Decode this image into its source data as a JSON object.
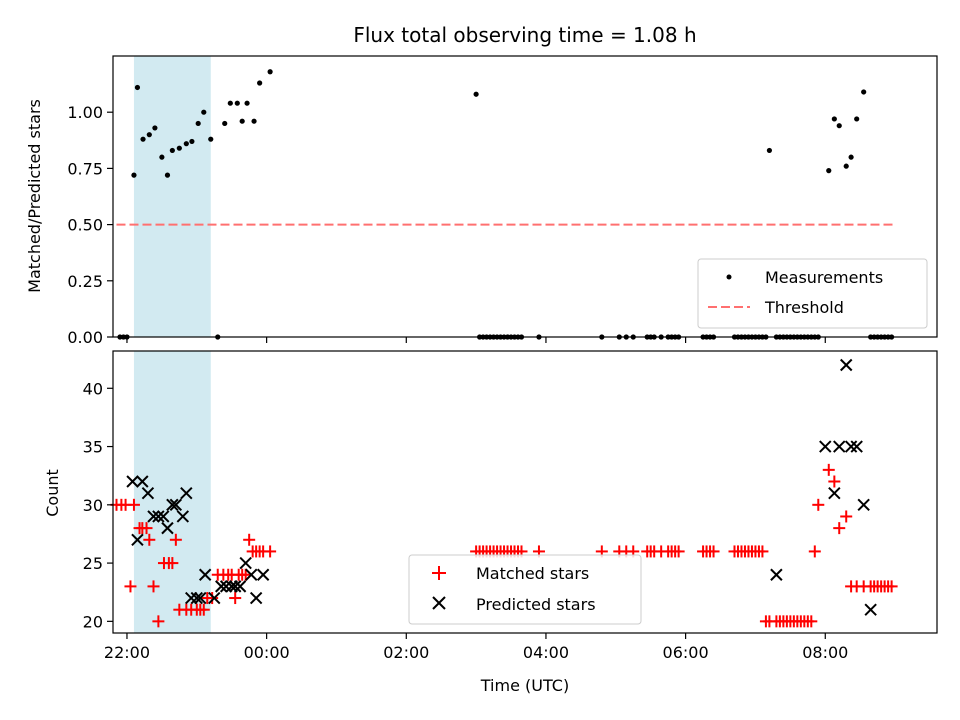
{
  "chart_data": [
    {
      "type": "scatter",
      "title": "Flux total observing time = 1.08 h",
      "xlabel": "",
      "ylabel": "Matched/Predicted stars",
      "xlim": [
        -2.2,
        9.6
      ],
      "ylim": [
        0,
        1.25
      ],
      "yticks": [
        0.0,
        0.25,
        0.5,
        0.75,
        1.0
      ],
      "ytick_labels": [
        "0.00",
        "0.25",
        "0.50",
        "0.75",
        "1.00"
      ],
      "shaded_span": [
        -1.9,
        -0.8
      ],
      "shade_color": "#add8e6",
      "threshold": {
        "name": "Threshold",
        "y": 0.5,
        "x_range": [
          -2.15,
          9.0
        ],
        "color": "#ff7070"
      },
      "legend": {
        "placement": "lower-right",
        "entries": [
          "Measurements",
          "Threshold"
        ]
      },
      "series": [
        {
          "name": "Measurements",
          "marker": "dot",
          "color": "#000000",
          "x": [
            -2.1,
            -2.05,
            -2.0,
            -1.9,
            -1.85,
            -1.77,
            -1.68,
            -1.6,
            -1.5,
            -1.42,
            -1.35,
            -1.25,
            -1.15,
            -1.07,
            -0.98,
            -0.9,
            -0.8,
            -0.7,
            -0.6,
            -0.52,
            -0.42,
            -0.35,
            -0.28,
            -0.18,
            -0.1,
            0.05,
            3.0,
            3.05,
            3.1,
            3.15,
            3.2,
            3.25,
            3.3,
            3.35,
            3.4,
            3.45,
            3.5,
            3.55,
            3.6,
            3.65,
            3.9,
            4.8,
            5.05,
            5.15,
            5.25,
            5.45,
            5.5,
            5.55,
            5.65,
            5.75,
            5.8,
            5.85,
            5.9,
            6.25,
            6.3,
            6.35,
            6.4,
            6.7,
            6.75,
            6.8,
            6.85,
            6.9,
            6.95,
            7.0,
            7.05,
            7.1,
            7.15,
            7.2,
            7.3,
            7.35,
            7.4,
            7.45,
            7.5,
            7.55,
            7.6,
            7.65,
            7.7,
            7.75,
            7.8,
            7.85,
            7.9,
            8.05,
            8.13,
            8.2,
            8.3,
            8.37,
            8.45,
            8.55,
            8.65,
            8.7,
            8.75,
            8.8,
            8.85,
            8.9,
            8.95
          ],
          "y": [
            0,
            0,
            0,
            0.72,
            1.11,
            0.88,
            0.9,
            0.93,
            0.8,
            0.72,
            0.83,
            0.84,
            0.86,
            0.87,
            0.95,
            1.0,
            0.88,
            0,
            0.95,
            1.04,
            1.04,
            0.96,
            1.04,
            0.96,
            1.13,
            1.18,
            1.08,
            0,
            0,
            0,
            0,
            0,
            0,
            0,
            0,
            0,
            0,
            0,
            0,
            0,
            0,
            0,
            0,
            0,
            0,
            0,
            0,
            0,
            0,
            0,
            0,
            0,
            0,
            0,
            0,
            0,
            0,
            0,
            0,
            0,
            0,
            0,
            0,
            0,
            0,
            0,
            0,
            0.83,
            0,
            0,
            0,
            0,
            0,
            0,
            0,
            0,
            0,
            0,
            0,
            0,
            0,
            0.74,
            0.97,
            0.94,
            0.76,
            0.8,
            0.97,
            1.09,
            0,
            0,
            0,
            0,
            0,
            0,
            0
          ]
        }
      ]
    },
    {
      "type": "scatter",
      "title": "",
      "xlabel": "Time (UTC)",
      "ylabel": "Count",
      "xlim": [
        -2.2,
        9.6
      ],
      "ylim": [
        19,
        43.2
      ],
      "yticks": [
        20,
        25,
        30,
        35,
        40
      ],
      "xticks": [
        -2,
        0,
        2,
        4,
        6,
        8
      ],
      "xtick_labels": [
        "22:00",
        "00:00",
        "02:00",
        "04:00",
        "06:00",
        "08:00"
      ],
      "shaded_span": [
        -1.9,
        -0.8
      ],
      "shade_color": "#add8e6",
      "legend": {
        "placement": "lower-center",
        "entries": [
          "Matched stars",
          "Predicted stars"
        ]
      },
      "series": [
        {
          "name": "Matched stars",
          "marker": "plus",
          "color": "#ff0000",
          "x": [
            -2.15,
            -2.08,
            -2.02,
            -1.95,
            -1.9,
            -1.82,
            -1.78,
            -1.72,
            -1.68,
            -1.62,
            -1.55,
            -1.47,
            -1.4,
            -1.35,
            -1.3,
            -1.25,
            -1.15,
            -1.08,
            -1.0,
            -0.95,
            -0.9,
            -0.85,
            -0.78,
            -0.7,
            -0.62,
            -0.55,
            -0.5,
            -0.45,
            -0.4,
            -0.35,
            -0.3,
            -0.25,
            -0.2,
            -0.15,
            -0.1,
            -0.05,
            0.05,
            3.0,
            3.05,
            3.1,
            3.15,
            3.2,
            3.25,
            3.3,
            3.35,
            3.4,
            3.45,
            3.5,
            3.55,
            3.6,
            3.65,
            3.9,
            4.8,
            5.05,
            5.15,
            5.25,
            5.45,
            5.5,
            5.55,
            5.65,
            5.75,
            5.8,
            5.85,
            5.9,
            6.25,
            6.3,
            6.35,
            6.4,
            6.7,
            6.75,
            6.8,
            6.85,
            6.9,
            6.95,
            7.0,
            7.05,
            7.1,
            7.15,
            7.2,
            7.3,
            7.35,
            7.4,
            7.45,
            7.5,
            7.55,
            7.6,
            7.65,
            7.7,
            7.75,
            7.8,
            7.85,
            7.9,
            8.05,
            8.13,
            8.2,
            8.3,
            8.37,
            8.45,
            8.55,
            8.65,
            8.7,
            8.75,
            8.8,
            8.85,
            8.9,
            8.95
          ],
          "y": [
            30,
            30,
            30,
            23,
            30,
            28,
            28,
            28,
            27,
            23,
            20,
            25,
            25,
            25,
            27,
            21,
            21,
            21,
            21,
            21,
            21,
            22,
            22,
            24,
            24,
            24,
            24,
            22,
            24,
            24,
            24,
            27,
            26,
            26,
            26,
            26,
            26,
            26,
            26,
            26,
            26,
            26,
            26,
            26,
            26,
            26,
            26,
            26,
            26,
            26,
            26,
            26,
            26,
            26,
            26,
            26,
            26,
            26,
            26,
            26,
            26,
            26,
            26,
            26,
            26,
            26,
            26,
            26,
            26,
            26,
            26,
            26,
            26,
            26,
            26,
            26,
            26,
            20,
            20,
            20,
            20,
            20,
            20,
            20,
            20,
            20,
            20,
            20,
            20,
            20,
            26,
            30,
            33,
            32,
            28,
            29,
            23,
            23,
            23,
            23,
            23,
            23,
            23,
            23,
            23,
            23
          ]
        },
        {
          "name": "Predicted stars",
          "marker": "x",
          "color": "#000000",
          "x": [
            -1.92,
            -1.85,
            -1.78,
            -1.7,
            -1.62,
            -1.55,
            -1.48,
            -1.42,
            -1.35,
            -1.3,
            -1.2,
            -1.15,
            -1.08,
            -1.0,
            -0.95,
            -0.88,
            -0.75,
            -0.65,
            -0.58,
            -0.5,
            -0.45,
            -0.38,
            -0.3,
            -0.22,
            -0.15,
            -0.05,
            7.3,
            8.0,
            8.13,
            8.2,
            8.3,
            8.37,
            8.45,
            8.55,
            8.65
          ],
          "y": [
            32,
            27,
            32,
            31,
            29,
            29,
            29,
            28,
            30,
            30,
            29,
            31,
            22,
            22,
            22,
            24,
            22,
            23,
            23,
            23,
            23,
            23,
            25,
            24,
            22,
            24,
            24,
            35,
            31,
            35,
            42,
            35,
            35,
            30,
            21
          ]
        }
      ]
    }
  ]
}
